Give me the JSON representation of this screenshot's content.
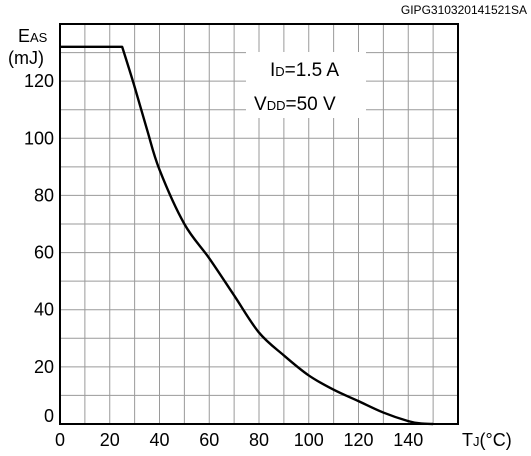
{
  "chart_data": {
    "type": "line",
    "figure_code": "GIPG310320141521SA",
    "y_label": {
      "main": "E",
      "sub": "AS",
      "unit": "(mJ)"
    },
    "x_label": {
      "main": "T",
      "sub": "J",
      "unit": "(°C)"
    },
    "xlim": [
      0,
      160
    ],
    "ylim": [
      0,
      140
    ],
    "x_ticks": [
      0,
      20,
      40,
      60,
      80,
      100,
      120,
      140
    ],
    "y_ticks": [
      0,
      20,
      40,
      60,
      80,
      100,
      120
    ],
    "grid": true,
    "annotations": [
      {
        "main": "I",
        "sub": "D",
        "rest": "=1.5 A"
      },
      {
        "main": "V",
        "sub": "DD",
        "rest": "=50 V"
      }
    ],
    "series": [
      {
        "x": [
          0,
          25,
          30,
          35,
          40,
          50,
          60,
          70,
          80,
          90,
          100,
          110,
          120,
          130,
          140,
          145,
          150
        ],
        "y": [
          132,
          132,
          118,
          103,
          89,
          70,
          58,
          45,
          32,
          24,
          17,
          12,
          8,
          4,
          1,
          0.2,
          0
        ]
      }
    ]
  }
}
